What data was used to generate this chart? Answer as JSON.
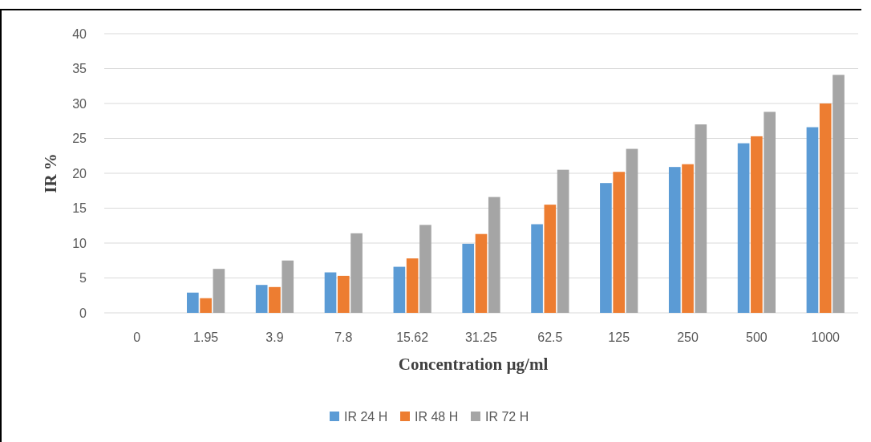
{
  "chart_data": {
    "type": "bar",
    "xlabel": "Concentration µg/ml",
    "ylabel": "IR %",
    "categories": [
      "0",
      "1.95",
      "3.9",
      "7.8",
      "15.62",
      "31.25",
      "62.5",
      "125",
      "250",
      "500",
      "1000"
    ],
    "series": [
      {
        "name": "IR 24 H",
        "color": "#5b9bd5",
        "values": [
          0,
          2.9,
          4.0,
          5.8,
          6.6,
          9.9,
          12.7,
          18.6,
          20.9,
          24.3,
          26.6
        ]
      },
      {
        "name": "IR 48 H",
        "color": "#ed7d31",
        "values": [
          0,
          2.1,
          3.7,
          5.3,
          7.8,
          11.3,
          15.5,
          20.2,
          21.3,
          25.3,
          30.0
        ]
      },
      {
        "name": "IR 72 H",
        "color": "#a5a5a5",
        "values": [
          0,
          6.3,
          7.5,
          11.4,
          12.6,
          16.6,
          20.5,
          23.5,
          27.0,
          28.8,
          34.1
        ]
      }
    ],
    "ylim": [
      0,
      40
    ],
    "yticks": [
      0,
      5,
      10,
      15,
      20,
      25,
      30,
      35,
      40
    ],
    "grid": "y",
    "legend": "bottom"
  }
}
